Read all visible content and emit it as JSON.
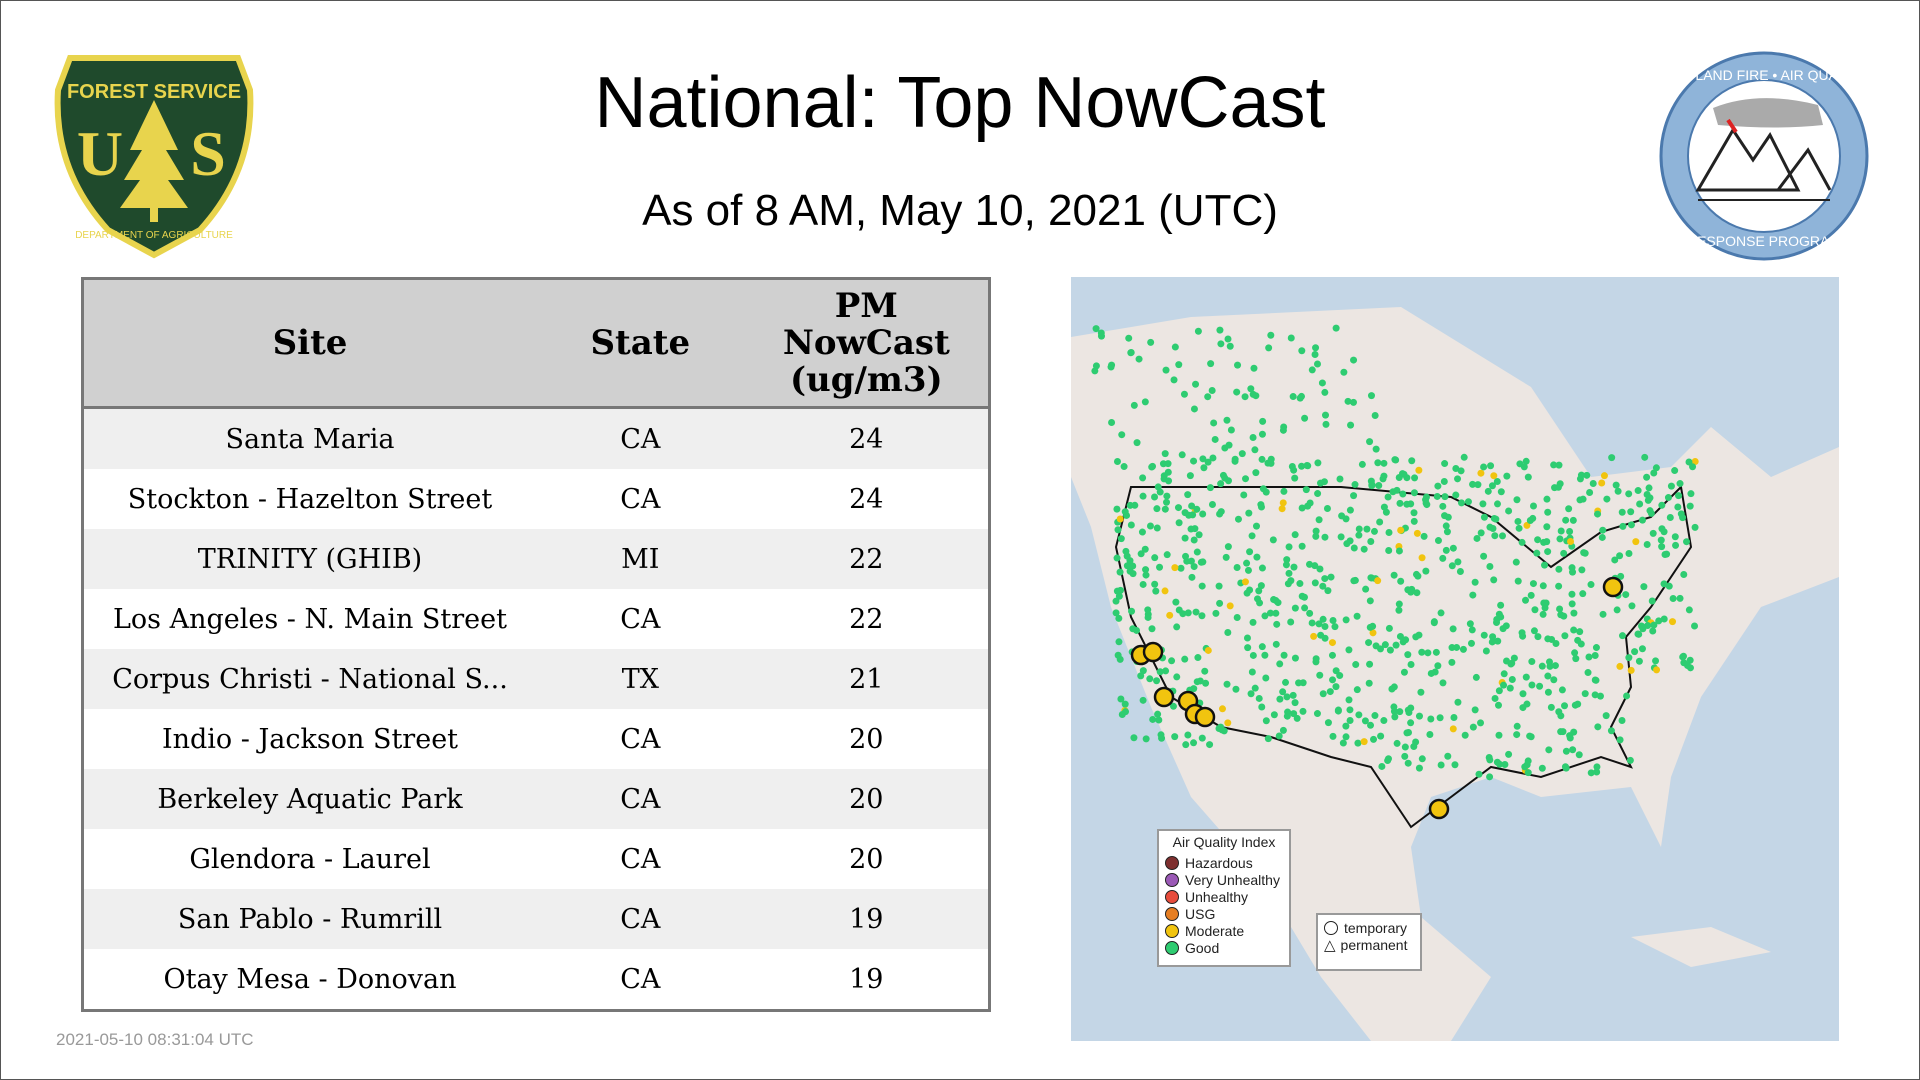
{
  "header": {
    "title": "National: Top NowCast",
    "subtitle": "As of  8 AM, May 10, 2021 (UTC)"
  },
  "logos": {
    "left": "FOREST SERVICE U S DEPARTMENT OF AGRICULTURE",
    "right": "WILDLAND FIRE • AIR QUALITY RESPONSE PROGRAM"
  },
  "table": {
    "headers": [
      "Site",
      "State",
      "PM NowCast (ug/m3)"
    ],
    "rows": [
      {
        "site": "Santa Maria",
        "state": "CA",
        "value": "24"
      },
      {
        "site": "Stockton - Hazelton Street",
        "state": "CA",
        "value": "24"
      },
      {
        "site": "TRINITY (GHIB)",
        "state": "MI",
        "value": "22"
      },
      {
        "site": "Los Angeles - N. Main Street",
        "state": "CA",
        "value": "22"
      },
      {
        "site": "Corpus Christi - National S...",
        "state": "TX",
        "value": "21"
      },
      {
        "site": "Indio - Jackson Street",
        "state": "CA",
        "value": "20"
      },
      {
        "site": "Berkeley Aquatic Park",
        "state": "CA",
        "value": "20"
      },
      {
        "site": "Glendora - Laurel",
        "state": "CA",
        "value": "20"
      },
      {
        "site": "San Pablo - Rumrill",
        "state": "CA",
        "value": "19"
      },
      {
        "site": "Otay Mesa - Donovan",
        "state": "CA",
        "value": "19"
      }
    ]
  },
  "map": {
    "aqi_legend": {
      "title": "Air Quality Index",
      "items": [
        {
          "label": "Hazardous",
          "color": "#7e2f2f"
        },
        {
          "label": "Very Unhealthy",
          "color": "#9b59b6"
        },
        {
          "label": "Unhealthy",
          "color": "#e74c3c"
        },
        {
          "label": "USG",
          "color": "#e67e22"
        },
        {
          "label": "Moderate",
          "color": "#f1c40f"
        },
        {
          "label": "Good",
          "color": "#2ecc71"
        }
      ]
    },
    "type_legend": {
      "items": [
        {
          "label": "temporary",
          "icon": "circle-icon"
        },
        {
          "label": "permanent",
          "icon": "triangle-icon"
        }
      ]
    },
    "colors": {
      "water": "#c4d6e6",
      "land": "#ece6e2"
    }
  },
  "footer": {
    "timestamp": "2021-05-10 08:31:04 UTC"
  }
}
